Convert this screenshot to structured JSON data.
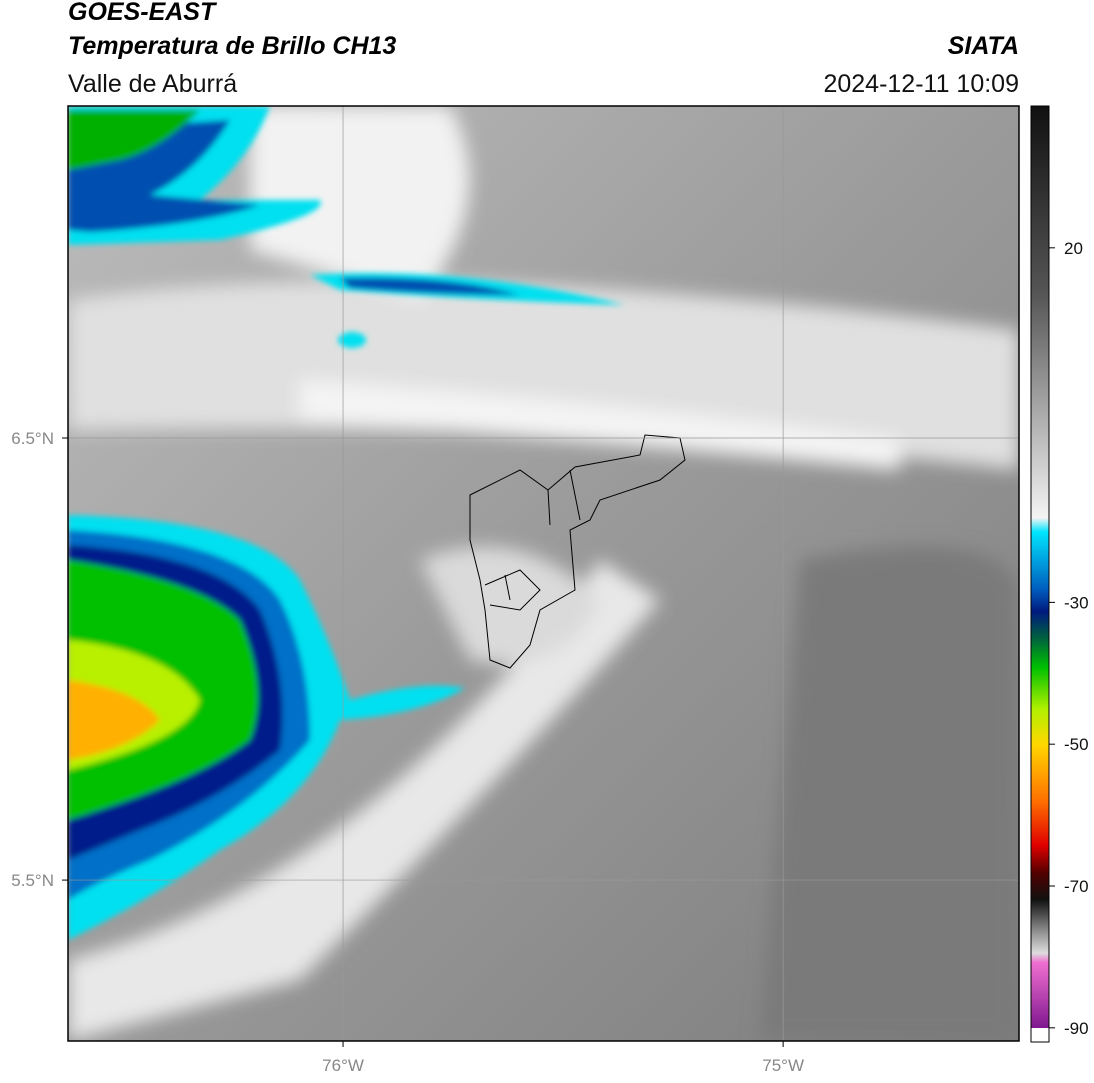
{
  "header": {
    "title": "GOES-EAST",
    "subtitle": "Temperatura de Brillo CH13",
    "region": "Valle de Aburrá",
    "source": "SIATA",
    "datetime": "2024-12-11 10:09"
  },
  "map": {
    "xlim": [
      -76.625,
      -74.464
    ],
    "ylim": [
      5.136,
      7.251
    ],
    "xticks": [
      {
        "value": -76,
        "label": "76°W"
      },
      {
        "value": -75,
        "label": "75°W"
      }
    ],
    "yticks": [
      {
        "value": 6.5,
        "label": "6.5°N"
      },
      {
        "value": 5.5,
        "label": "5.5°N"
      }
    ],
    "grid": true
  },
  "colorbar": {
    "lim": [
      -92,
      40
    ],
    "ticks": [
      20,
      -30,
      -50,
      -70,
      -90
    ]
  }
}
